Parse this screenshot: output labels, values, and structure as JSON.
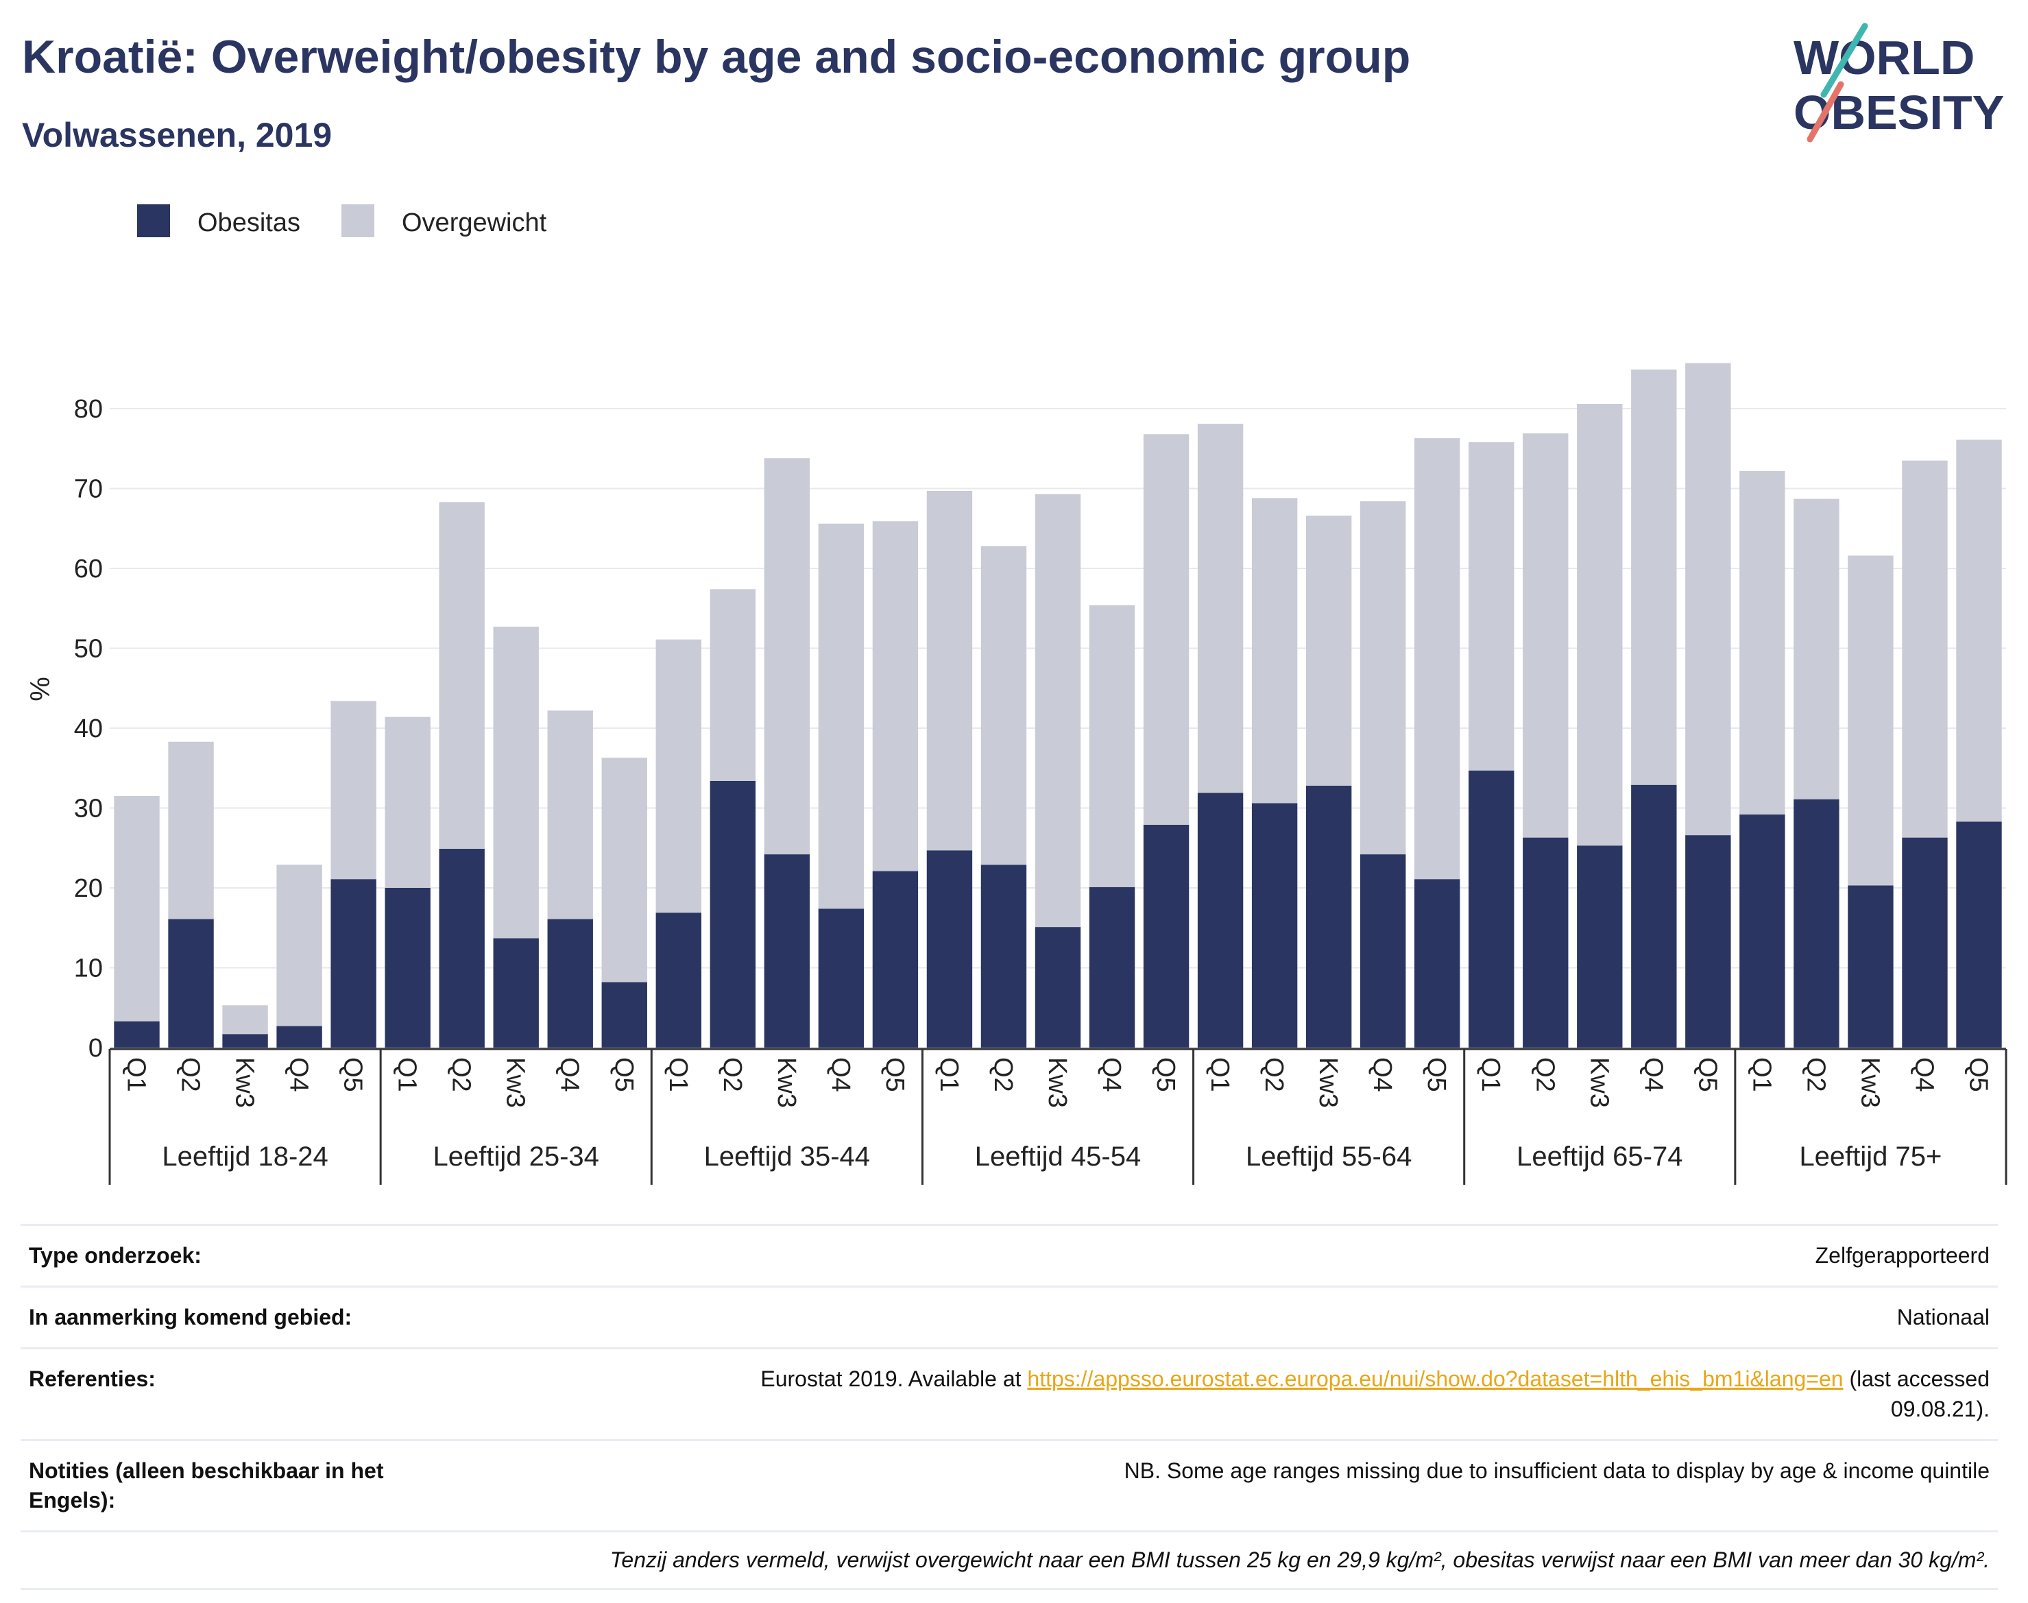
{
  "title": "Kroatië: Overweight/obesity by age and socio-economic group",
  "subtitle": "Volwassenen, 2019",
  "logo": {
    "line1": "WORLD",
    "line2": "OBESITY"
  },
  "colors": {
    "obesity": "#2b3561",
    "overweight": "#c9cbd6",
    "accent_teal": "#3fb6b0",
    "accent_coral": "#e4746a"
  },
  "chart_data": {
    "type": "bar",
    "stacked": true,
    "ylabel": "%",
    "ylim": [
      0,
      90
    ],
    "yticks": [
      0,
      10,
      20,
      30,
      40,
      50,
      60,
      70,
      80
    ],
    "grid": true,
    "legend_position": "top-left",
    "quintile_labels": [
      "Q1",
      "Q2",
      "Kw3",
      "Q4",
      "Q5"
    ],
    "groups": [
      "Leeftijd 18-24",
      "Leeftijd 25-34",
      "Leeftijd 35-44",
      "Leeftijd 45-54",
      "Leeftijd 55-64",
      "Leeftijd 65-74",
      "Leeftijd 75+"
    ],
    "series": [
      {
        "name": "Obesitas",
        "values": [
          3.3,
          16.1,
          1.7,
          2.7,
          21.1,
          20.0,
          24.9,
          13.7,
          16.1,
          8.2,
          16.9,
          33.4,
          24.2,
          17.4,
          22.1,
          24.7,
          22.9,
          15.1,
          20.1,
          27.9,
          31.9,
          30.6,
          32.8,
          24.2,
          21.1,
          34.7,
          26.3,
          25.3,
          32.9,
          26.6,
          29.2,
          31.1,
          20.3,
          26.3,
          28.3
        ]
      },
      {
        "name": "Overgewicht",
        "values": [
          28.2,
          22.2,
          3.6,
          20.2,
          22.3,
          21.4,
          43.4,
          39.0,
          26.1,
          28.1,
          34.2,
          24.0,
          49.6,
          48.2,
          43.8,
          45.0,
          39.9,
          54.2,
          35.3,
          48.9,
          46.2,
          38.2,
          33.8,
          44.2,
          55.2,
          41.1,
          50.6,
          55.3,
          52.0,
          59.1,
          43.0,
          37.6,
          41.3,
          47.2,
          47.8
        ]
      }
    ]
  },
  "meta": {
    "rows": [
      {
        "label": "Type onderzoek:",
        "value": "Zelfgerapporteerd"
      },
      {
        "label": "In aanmerking komend gebied:",
        "value": "Nationaal"
      },
      {
        "label": "Referenties:",
        "value_prefix": "Eurostat 2019. Available at ",
        "link": "https://appsso.eurostat.ec.europa.eu/nui/show.do?dataset=hlth_ehis_bm1i&lang=en",
        "value_suffix": " (last accessed",
        "value_line2": "09.08.21)."
      },
      {
        "label": "Notities (alleen beschikbaar in het Engels):",
        "value": "NB. Some age ranges missing due to insufficient data to display by age & income quintile"
      }
    ],
    "footnote": "Tenzij anders vermeld, verwijst overgewicht naar een BMI tussen 25 kg en 29,9 kg/m², obesitas verwijst naar een BMI van meer dan 30 kg/m²."
  }
}
